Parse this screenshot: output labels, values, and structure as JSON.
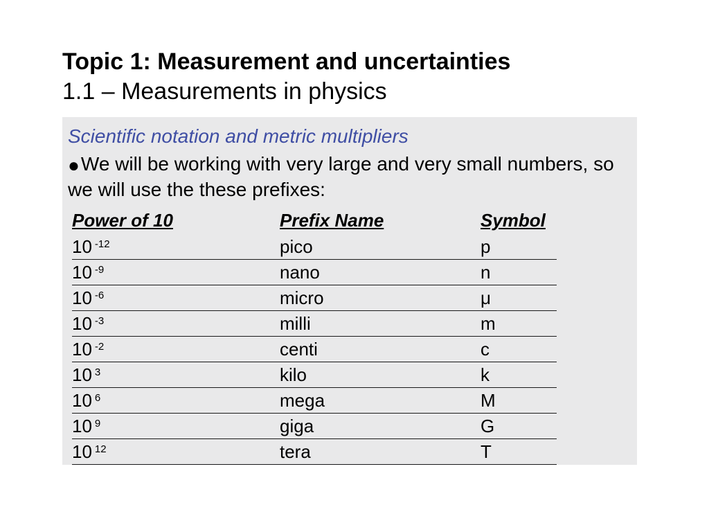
{
  "title": {
    "topic": "Topic 1: Measurement and uncertainties",
    "subtopic": "1.1 – Measurements in physics"
  },
  "section_heading": "Scientific notation and metric multipliers",
  "body_text": "We will be working with very large and very small numbers, so we will use the these prefixes:",
  "table": {
    "headers": {
      "power": "Power of 10",
      "prefix": "Prefix Name",
      "symbol": "Symbol"
    },
    "rows": [
      {
        "base": "10",
        "exp": "-12",
        "prefix": "pico",
        "symbol": "p"
      },
      {
        "base": "10",
        "exp": "-9",
        "prefix": "nano",
        "symbol": "n"
      },
      {
        "base": "10",
        "exp": "-6",
        "prefix": "micro",
        "symbol": "μ"
      },
      {
        "base": "10",
        "exp": "-3",
        "prefix": "milli",
        "symbol": "m"
      },
      {
        "base": "10",
        "exp": "-2",
        "prefix": "centi",
        "symbol": "c"
      },
      {
        "base": "10",
        "exp": "3",
        "prefix": "kilo",
        "symbol": "k"
      },
      {
        "base": "10",
        "exp": "6",
        "prefix": "mega",
        "symbol": "M"
      },
      {
        "base": "10",
        "exp": "9",
        "prefix": "giga",
        "symbol": "G"
      },
      {
        "base": "10",
        "exp": "12",
        "prefix": "tera",
        "symbol": "T"
      }
    ]
  },
  "colors": {
    "heading": "#3f4ea4",
    "panel_bg": "#e9e9ea",
    "text": "#000000",
    "rule": "#1a1a1a"
  }
}
